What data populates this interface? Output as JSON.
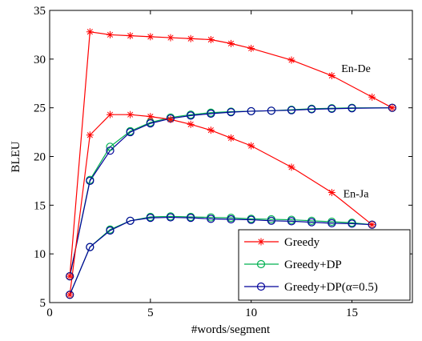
{
  "chart_data": {
    "type": "line",
    "xlabel": "#words/segment",
    "ylabel": "BLEU",
    "xlim": [
      0,
      18
    ],
    "ylim": [
      5,
      35
    ],
    "xticks": [
      0,
      5,
      10,
      15
    ],
    "yticks": [
      5,
      10,
      15,
      20,
      25,
      30,
      35
    ],
    "grid": false,
    "legend_position": "bottom-right",
    "legend": [
      {
        "name": "Greedy",
        "color": "#ff0000",
        "marker": "star"
      },
      {
        "name": "Greedy+DP",
        "color": "#00b050",
        "marker": "circle"
      },
      {
        "name": "Greedy+DP(α=0.5)",
        "color": "#000099",
        "marker": "circle"
      }
    ],
    "annotations": [
      {
        "text": "En-De",
        "x": 15.2,
        "y": 29.1
      },
      {
        "text": "En-Ja",
        "x": 15.2,
        "y": 16.2
      }
    ],
    "series": [
      {
        "name": "Greedy",
        "group": "En-De",
        "color": "#ff0000",
        "marker": "star",
        "x": [
          1,
          2,
          3,
          4,
          5,
          6,
          7,
          8,
          9,
          10,
          12,
          14,
          16,
          17
        ],
        "y": [
          7.7,
          32.8,
          32.5,
          32.4,
          32.3,
          32.2,
          32.1,
          32.0,
          31.6,
          31.1,
          29.9,
          28.3,
          26.1,
          25.0
        ]
      },
      {
        "name": "Greedy+DP",
        "group": "En-De",
        "color": "#00b050",
        "marker": "circle",
        "x": [
          1,
          2,
          3,
          4,
          5,
          6,
          7,
          8,
          9,
          10,
          11,
          12,
          13,
          14,
          15,
          17
        ],
        "y": [
          7.7,
          17.6,
          21.0,
          22.6,
          23.5,
          24.0,
          24.3,
          24.5,
          24.6,
          24.65,
          24.7,
          24.8,
          24.9,
          24.95,
          25.0,
          25.0
        ]
      },
      {
        "name": "Greedy+DP(α=0.5)",
        "group": "En-De",
        "color": "#000099",
        "marker": "circle",
        "x": [
          1,
          2,
          3,
          4,
          5,
          6,
          7,
          8,
          9,
          10,
          11,
          12,
          13,
          14,
          15,
          17
        ],
        "y": [
          7.7,
          17.5,
          20.6,
          22.5,
          23.4,
          23.9,
          24.2,
          24.4,
          24.55,
          24.65,
          24.7,
          24.75,
          24.85,
          24.9,
          24.95,
          25.0
        ]
      },
      {
        "name": "Greedy",
        "group": "En-Ja",
        "color": "#ff0000",
        "marker": "star",
        "x": [
          1,
          2,
          3,
          4,
          5,
          6,
          7,
          8,
          9,
          10,
          12,
          14,
          16
        ],
        "y": [
          5.8,
          22.2,
          24.3,
          24.3,
          24.1,
          23.8,
          23.3,
          22.7,
          21.9,
          21.1,
          18.9,
          16.3,
          13.0
        ]
      },
      {
        "name": "Greedy+DP",
        "group": "En-Ja",
        "color": "#00b050",
        "marker": "circle",
        "x": [
          1,
          2,
          3,
          4,
          5,
          6,
          7,
          8,
          9,
          10,
          11,
          12,
          13,
          14,
          15,
          16
        ],
        "y": [
          5.8,
          10.7,
          12.5,
          13.4,
          13.8,
          13.85,
          13.8,
          13.75,
          13.7,
          13.6,
          13.55,
          13.5,
          13.4,
          13.3,
          13.2,
          13.0
        ]
      },
      {
        "name": "Greedy+DP(α=0.5)",
        "group": "En-Ja",
        "color": "#000099",
        "marker": "circle",
        "x": [
          1,
          2,
          3,
          4,
          5,
          6,
          7,
          8,
          9,
          10,
          11,
          12,
          13,
          14,
          15,
          16
        ],
        "y": [
          5.8,
          10.7,
          12.4,
          13.4,
          13.7,
          13.75,
          13.7,
          13.6,
          13.55,
          13.5,
          13.4,
          13.35,
          13.25,
          13.15,
          13.1,
          13.0
        ]
      }
    ]
  }
}
